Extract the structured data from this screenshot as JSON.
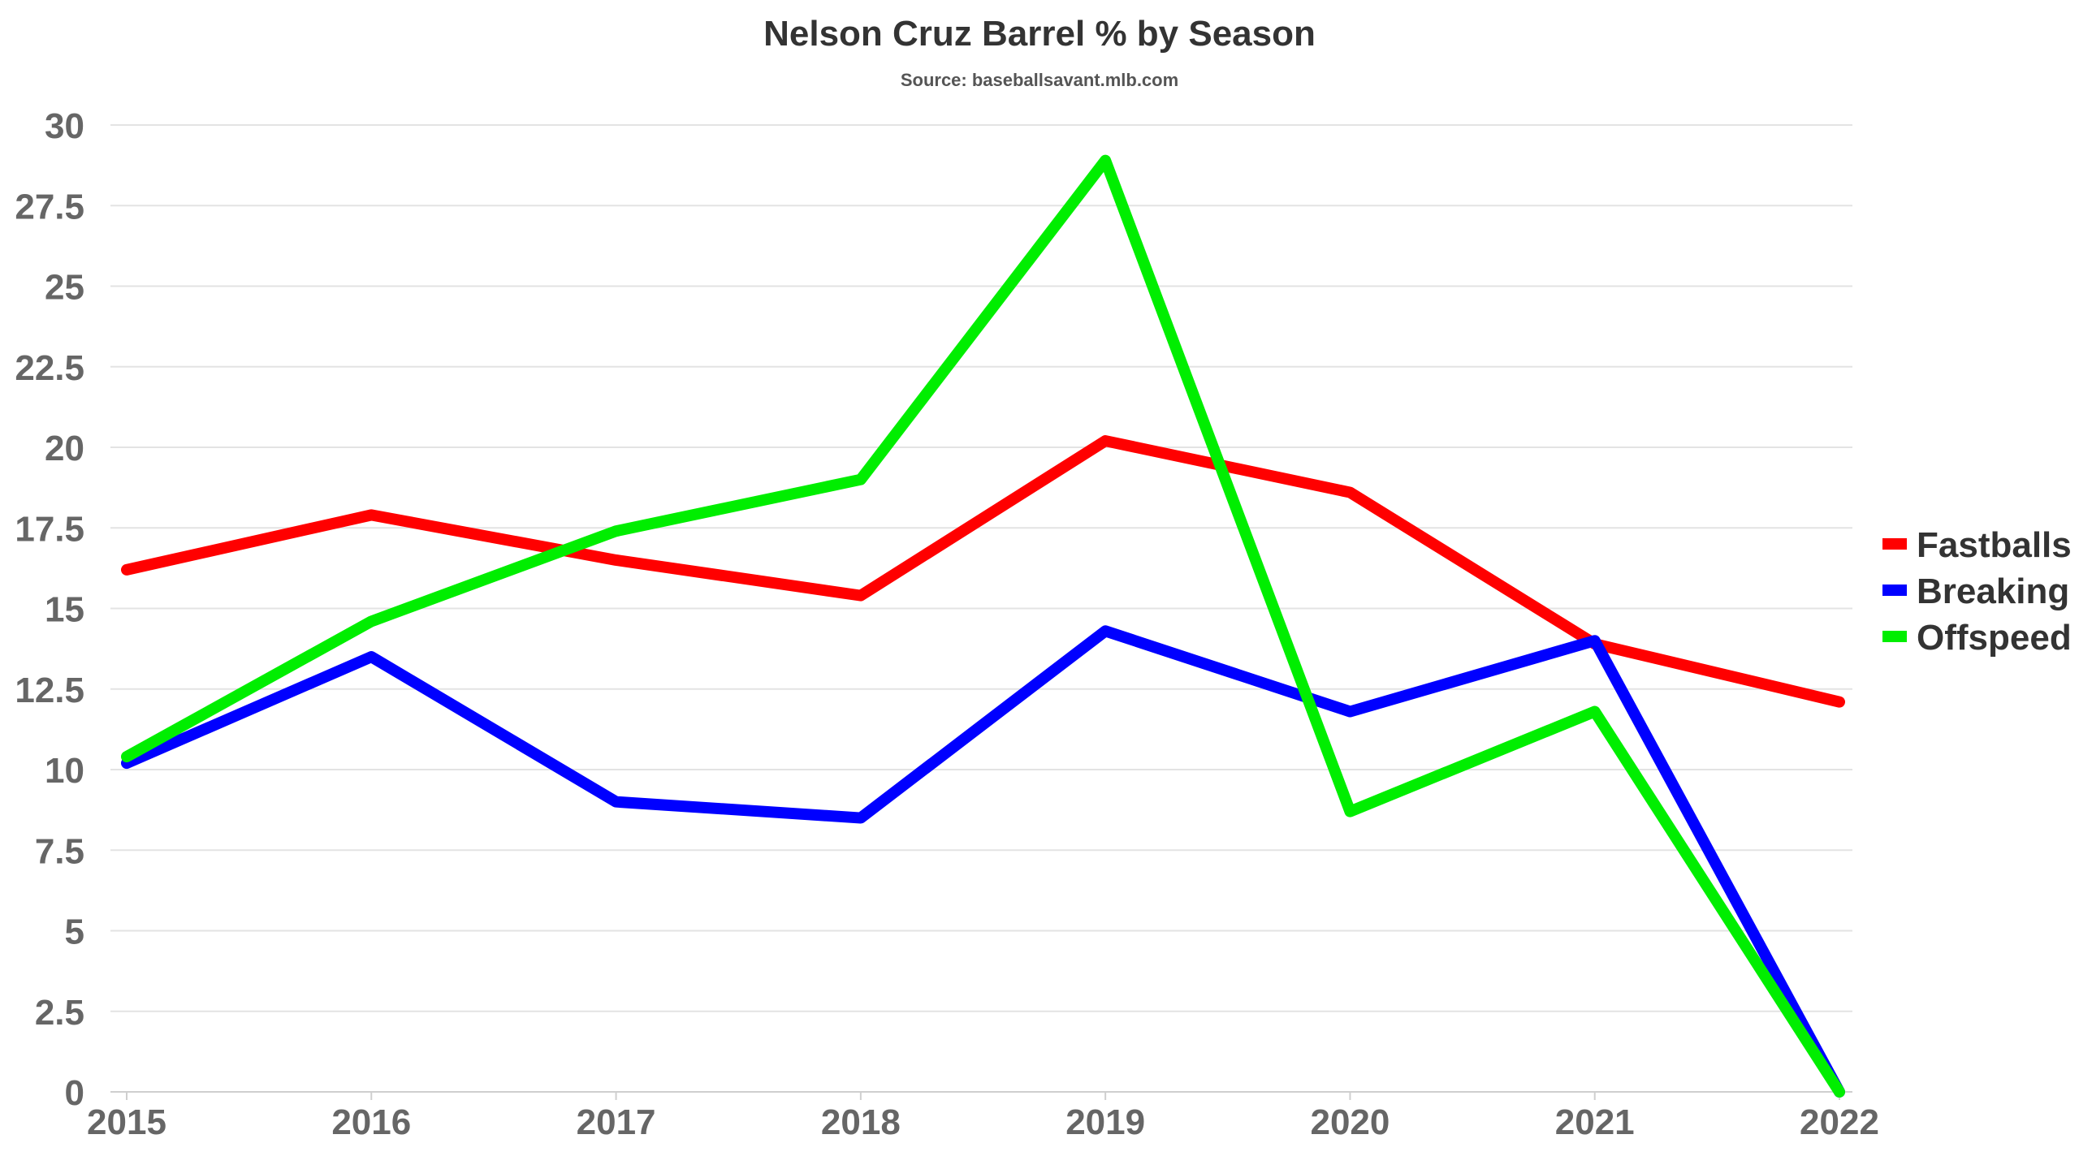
{
  "chart_data": {
    "type": "line",
    "title": "Nelson Cruz Barrel % by Season",
    "subtitle": "Source: baseballsavant.mlb.com",
    "xlabel": "",
    "ylabel": "",
    "categories": [
      "2015",
      "2016",
      "2017",
      "2018",
      "2019",
      "2020",
      "2021",
      "2022"
    ],
    "ylim": [
      0,
      30
    ],
    "yticks": [
      "0",
      "2.5",
      "5",
      "7.5",
      "10",
      "12.5",
      "15",
      "17.5",
      "20",
      "22.5",
      "25",
      "27.5",
      "30"
    ],
    "grid": true,
    "legend_position": "right",
    "series": [
      {
        "name": "Fastballs",
        "color": "#ff0000",
        "values": [
          16.2,
          17.9,
          16.5,
          15.4,
          20.2,
          18.6,
          13.9,
          12.1
        ]
      },
      {
        "name": "Breaking",
        "color": "#0000ff",
        "values": [
          10.2,
          13.5,
          9.0,
          8.5,
          14.3,
          11.8,
          14.0,
          0.0
        ]
      },
      {
        "name": "Offspeed",
        "color": "#00ee00",
        "values": [
          10.4,
          14.6,
          17.4,
          19.0,
          28.9,
          8.7,
          11.8,
          0.0
        ]
      }
    ]
  }
}
